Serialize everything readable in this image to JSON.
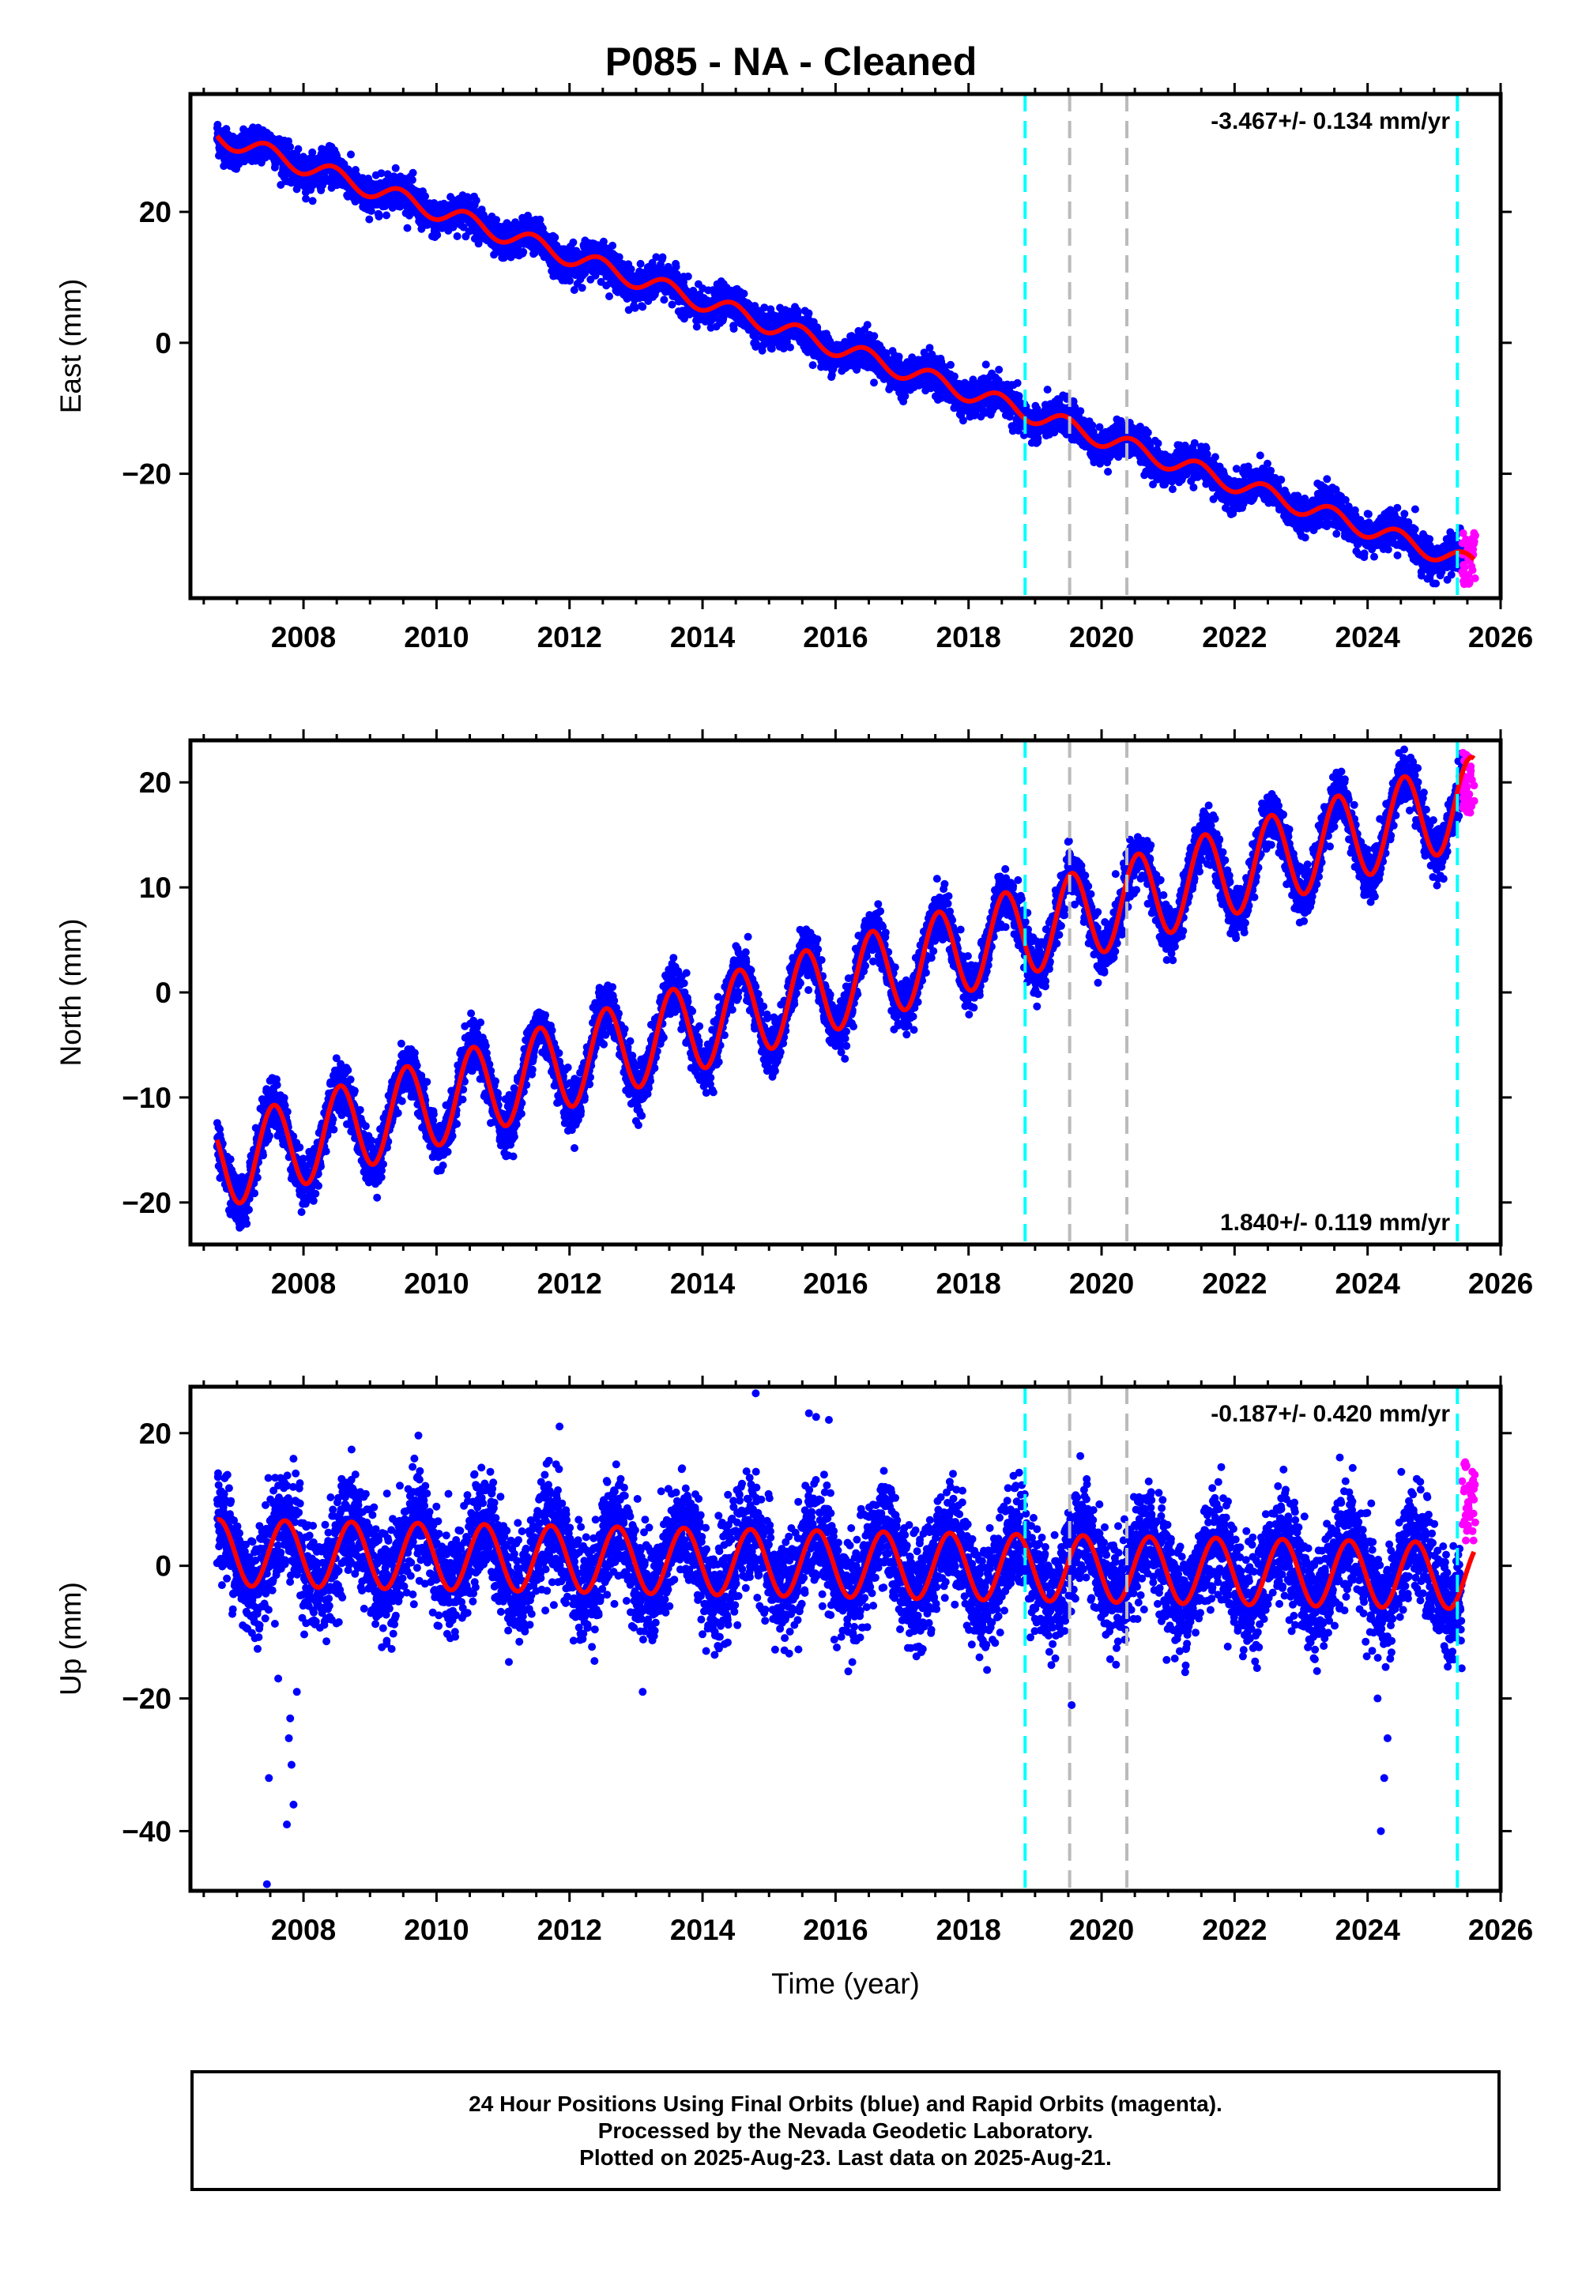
{
  "title": "P085  - NA - Cleaned",
  "colors": {
    "final_orbits": "#0000ff",
    "rapid_orbits": "#ff00ff",
    "model_fit": "#ff0000",
    "equipment_change": "#00ffff",
    "other_event": "#bbbbbb",
    "axes": "#000000"
  },
  "chart_data": [
    {
      "type": "scatter",
      "name": "east",
      "ylabel": "East (mm)",
      "xlabel": "",
      "xlim": [
        2006.3,
        2026.0
      ],
      "ylim": [
        -39,
        38
      ],
      "x_ticks": [
        2008,
        2010,
        2012,
        2014,
        2016,
        2018,
        2020,
        2022,
        2024,
        2026
      ],
      "y_ticks": [
        -20,
        0,
        20
      ],
      "rate_label": "-3.467+/- 0.134 mm/yr",
      "rate_label_position": "top-right",
      "trend": {
        "start": 2006.7,
        "end": 2025.6,
        "offset_at_start": 31.6,
        "slope_mm_per_yr": -3.467,
        "annual_amplitude": 1.4,
        "phase_peak": 0.45
      },
      "noise_scatter": 1.3,
      "rapid_orbit_values": {
        "x_start": 2025.42,
        "x_end": 2025.62,
        "y_range": [
          -37,
          -29
        ]
      },
      "events": {
        "cyan": [
          2018.85,
          2025.35
        ],
        "gray": [
          2019.52,
          2020.38
        ]
      }
    },
    {
      "type": "scatter",
      "name": "north",
      "ylabel": "North (mm)",
      "xlabel": "",
      "xlim": [
        2006.3,
        2026.0
      ],
      "ylim": [
        -24,
        24
      ],
      "x_ticks": [
        2008,
        2010,
        2012,
        2014,
        2016,
        2018,
        2020,
        2022,
        2024,
        2026
      ],
      "y_ticks": [
        -20,
        -10,
        0,
        10,
        20
      ],
      "rate_label": "1.840+/- 0.119 mm/yr",
      "rate_label_position": "bottom-right",
      "trend": {
        "start": 2006.7,
        "end": 2025.6,
        "offset_at_start": -16.5,
        "slope_mm_per_yr": 1.84,
        "annual_amplitude": 4.2,
        "phase_peak": 0.55
      },
      "noise_scatter": 1.2,
      "rapid_orbit_values": {
        "x_start": 2025.42,
        "x_end": 2025.62,
        "y_range": [
          17,
          23
        ]
      },
      "events": {
        "cyan": [
          2018.85,
          2025.35
        ],
        "gray": [
          2019.52,
          2020.38
        ]
      }
    },
    {
      "type": "scatter",
      "name": "up",
      "ylabel": "Up (mm)",
      "xlabel": "Time (year)",
      "xlim": [
        2006.3,
        2026.0
      ],
      "ylim": [
        -49,
        27
      ],
      "x_ticks": [
        2008,
        2010,
        2012,
        2014,
        2016,
        2018,
        2020,
        2022,
        2024,
        2026
      ],
      "y_ticks": [
        -40,
        -20,
        0,
        20
      ],
      "rate_label": "-0.187+/- 0.420 mm/yr",
      "rate_label_position": "top-right",
      "trend": {
        "start": 2006.7,
        "end": 2025.6,
        "offset_at_start": 2.0,
        "slope_mm_per_yr": -0.187,
        "annual_amplitude": 5.0,
        "phase_peak": 0.72
      },
      "noise_scatter": 4.0,
      "rapid_orbit_values": {
        "x_start": 2025.42,
        "x_end": 2025.62,
        "y_range": [
          2,
          16
        ]
      },
      "outliers": [
        [
          2007.45,
          -48
        ],
        [
          2007.48,
          -32
        ],
        [
          2007.62,
          -17
        ],
        [
          2007.78,
          -26
        ],
        [
          2007.82,
          -30
        ],
        [
          2007.85,
          -36
        ],
        [
          2007.75,
          -39
        ],
        [
          2007.8,
          -23
        ],
        [
          2007.9,
          -19
        ],
        [
          2013.1,
          -19
        ],
        [
          2014.8,
          26
        ],
        [
          2015.6,
          23
        ],
        [
          2015.9,
          22
        ],
        [
          2011.85,
          21
        ],
        [
          2019.55,
          -21
        ],
        [
          2024.2,
          -40
        ],
        [
          2024.25,
          -32
        ],
        [
          2024.3,
          -26
        ],
        [
          2024.15,
          -20
        ]
      ],
      "events": {
        "cyan": [
          2018.85,
          2025.35
        ],
        "gray": [
          2019.52,
          2020.38
        ]
      }
    }
  ],
  "footer": {
    "line1": "24 Hour Positions Using Final Orbits (blue) and Rapid Orbits (magenta).",
    "line2": "Processed by the Nevada Geodetic Laboratory.",
    "line3": "Plotted on 2025-Aug-23. Last data on 2025-Aug-21."
  }
}
